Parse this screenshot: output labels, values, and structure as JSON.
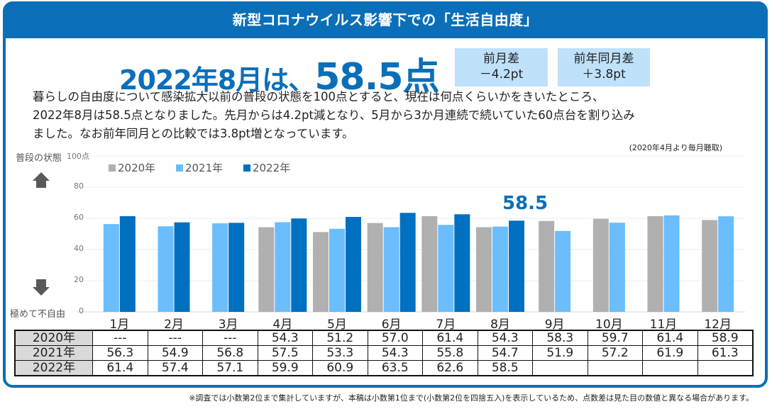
{
  "header": {
    "title": "新型コロナウイルス影響下での「生活自由度」"
  },
  "headline": {
    "prefix": "2022年8月は、",
    "score": "58.5点"
  },
  "diff_boxes": [
    {
      "label": "前月差",
      "value": "－4.2pt"
    },
    {
      "label": "前年同月差",
      "value": "＋3.8pt"
    }
  ],
  "description": [
    "暮らしの自由度について感染拡大以前の普段の状態を100点とすると、現在は何点くらいかをきいたところ、",
    "2022年8月は58.5点となりました。先月からは4.2pt減となり、5月から3か月連続で続いていた60点台を割り込み",
    "ました。なお前年同月との比較では3.8pt増となっています。"
  ],
  "period_note": "(2020年4月より毎月聴取)",
  "axis_labels": {
    "top": "普段の状態",
    "bottom": "極めて不自由"
  },
  "callout": "58.5",
  "colors": {
    "brand": "#0a6fb8",
    "s2020": "#b0b0b0",
    "s2021": "#6bbdfb",
    "s2022": "#0070c0",
    "box": "#bfe1fa"
  },
  "chart_data": {
    "type": "bar",
    "title": "新型コロナウイルス影響下での「生活自由度」",
    "xlabel": "",
    "ylabel": "",
    "ylim": [
      0,
      100
    ],
    "yticks": [
      "0",
      "20",
      "40",
      "60",
      "80",
      "100点"
    ],
    "grid": true,
    "legend_position": "top-left",
    "categories": [
      "1月",
      "2月",
      "3月",
      "4月",
      "5月",
      "6月",
      "7月",
      "8月",
      "9月",
      "10月",
      "11月",
      "12月"
    ],
    "series": [
      {
        "name": "2020年",
        "values": [
          null,
          null,
          null,
          54.3,
          51.2,
          57.0,
          61.4,
          54.3,
          58.3,
          59.7,
          61.4,
          58.9
        ]
      },
      {
        "name": "2021年",
        "values": [
          56.3,
          54.9,
          56.8,
          57.5,
          53.3,
          54.3,
          55.8,
          54.7,
          51.9,
          57.2,
          61.9,
          61.3
        ]
      },
      {
        "name": "2022年",
        "values": [
          61.4,
          57.4,
          57.1,
          59.9,
          60.9,
          63.5,
          62.6,
          58.5,
          null,
          null,
          null,
          null
        ]
      }
    ],
    "annotations": [
      {
        "category": "8月",
        "text": "58.5"
      }
    ]
  },
  "table": {
    "rows": [
      {
        "label": "2020年",
        "cells": [
          "---",
          "---",
          "---",
          "54.3",
          "51.2",
          "57.0",
          "61.4",
          "54.3",
          "58.3",
          "59.7",
          "61.4",
          "58.9"
        ]
      },
      {
        "label": "2021年",
        "cells": [
          "56.3",
          "54.9",
          "56.8",
          "57.5",
          "53.3",
          "54.3",
          "55.8",
          "54.7",
          "51.9",
          "57.2",
          "61.9",
          "61.3"
        ]
      },
      {
        "label": "2022年",
        "cells": [
          "61.4",
          "57.4",
          "57.1",
          "59.9",
          "60.9",
          "63.5",
          "62.6",
          "58.5",
          "",
          "",
          "",
          ""
        ]
      }
    ]
  },
  "footnote": "※調査では小数第2位まで集計していますが、本稿は小数第1位まで(小数第2位を四捨五入)を表示しているため、点数差は見た目の数値と異なる場合があります。"
}
